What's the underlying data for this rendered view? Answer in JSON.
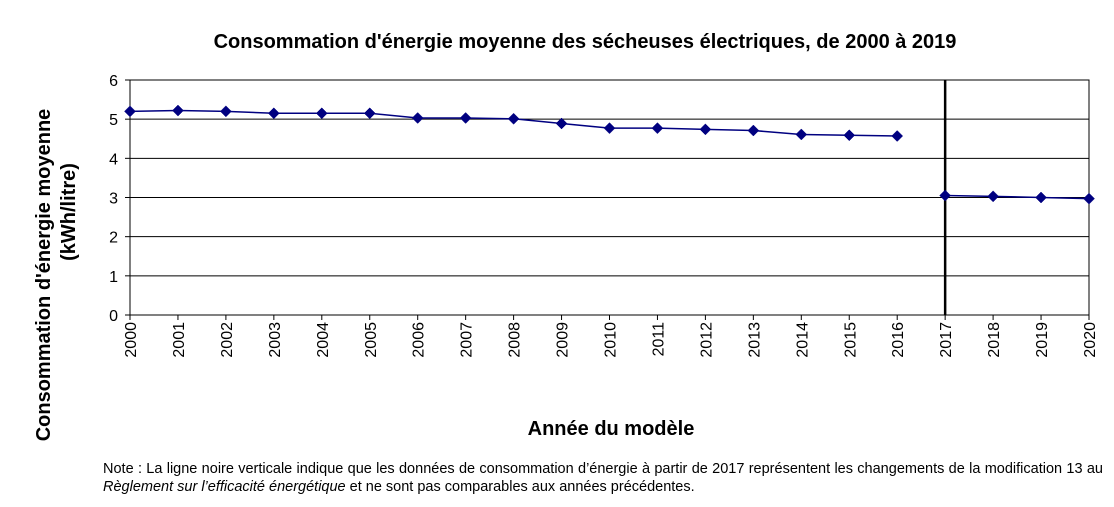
{
  "chart_data": {
    "type": "line",
    "title": "Consommation d'énergie moyenne des sécheuses électriques, de 2000 à 2019",
    "xlabel": "Année du modèle",
    "ylabel": [
      "Consommation d'énergie moyenne",
      "(kWh/litre)"
    ],
    "ylim": [
      0,
      6
    ],
    "yticks": [
      "0",
      "1",
      "2",
      "3",
      "4",
      "5",
      "6"
    ],
    "xticks": [
      "2000",
      "2001",
      "2002",
      "2003",
      "2004",
      "2005",
      "2006",
      "2007",
      "2008",
      "2009",
      "2010",
      "2011",
      "2012",
      "2013",
      "2014",
      "2015",
      "2016",
      "2017",
      "2018",
      "2019",
      "2020"
    ],
    "grid": true,
    "series": [
      {
        "segments": [
          {
            "x": [
              2000,
              2001,
              2002,
              2003,
              2004,
              2005,
              2006,
              2007,
              2008,
              2009,
              2010,
              2011,
              2012,
              2013,
              2014,
              2015,
              2016
            ],
            "y": [
              5.2,
              5.22,
              5.2,
              5.15,
              5.15,
              5.15,
              5.03,
              5.03,
              5.01,
              4.89,
              4.77,
              4.77,
              4.74,
              4.71,
              4.61,
              4.59,
              4.57
            ]
          },
          {
            "x": [
              2017,
              2018,
              2019,
              2020
            ],
            "y": [
              3.05,
              3.03,
              3.0,
              2.97
            ]
          }
        ]
      }
    ],
    "marker_line_x": 2017,
    "colors": {
      "series": "#000080",
      "grid": "#000000",
      "marker_line": "#000000"
    }
  },
  "note": {
    "prefix": "Note : La ligne noire verticale indique que les données de consommation d’énergie à partir de 2017 représentent les changements de la modification 13 au ",
    "emphasis": "Règlement sur l’efficacité énergétique",
    "suffix": " et ne sont pas comparables aux années précédentes."
  }
}
